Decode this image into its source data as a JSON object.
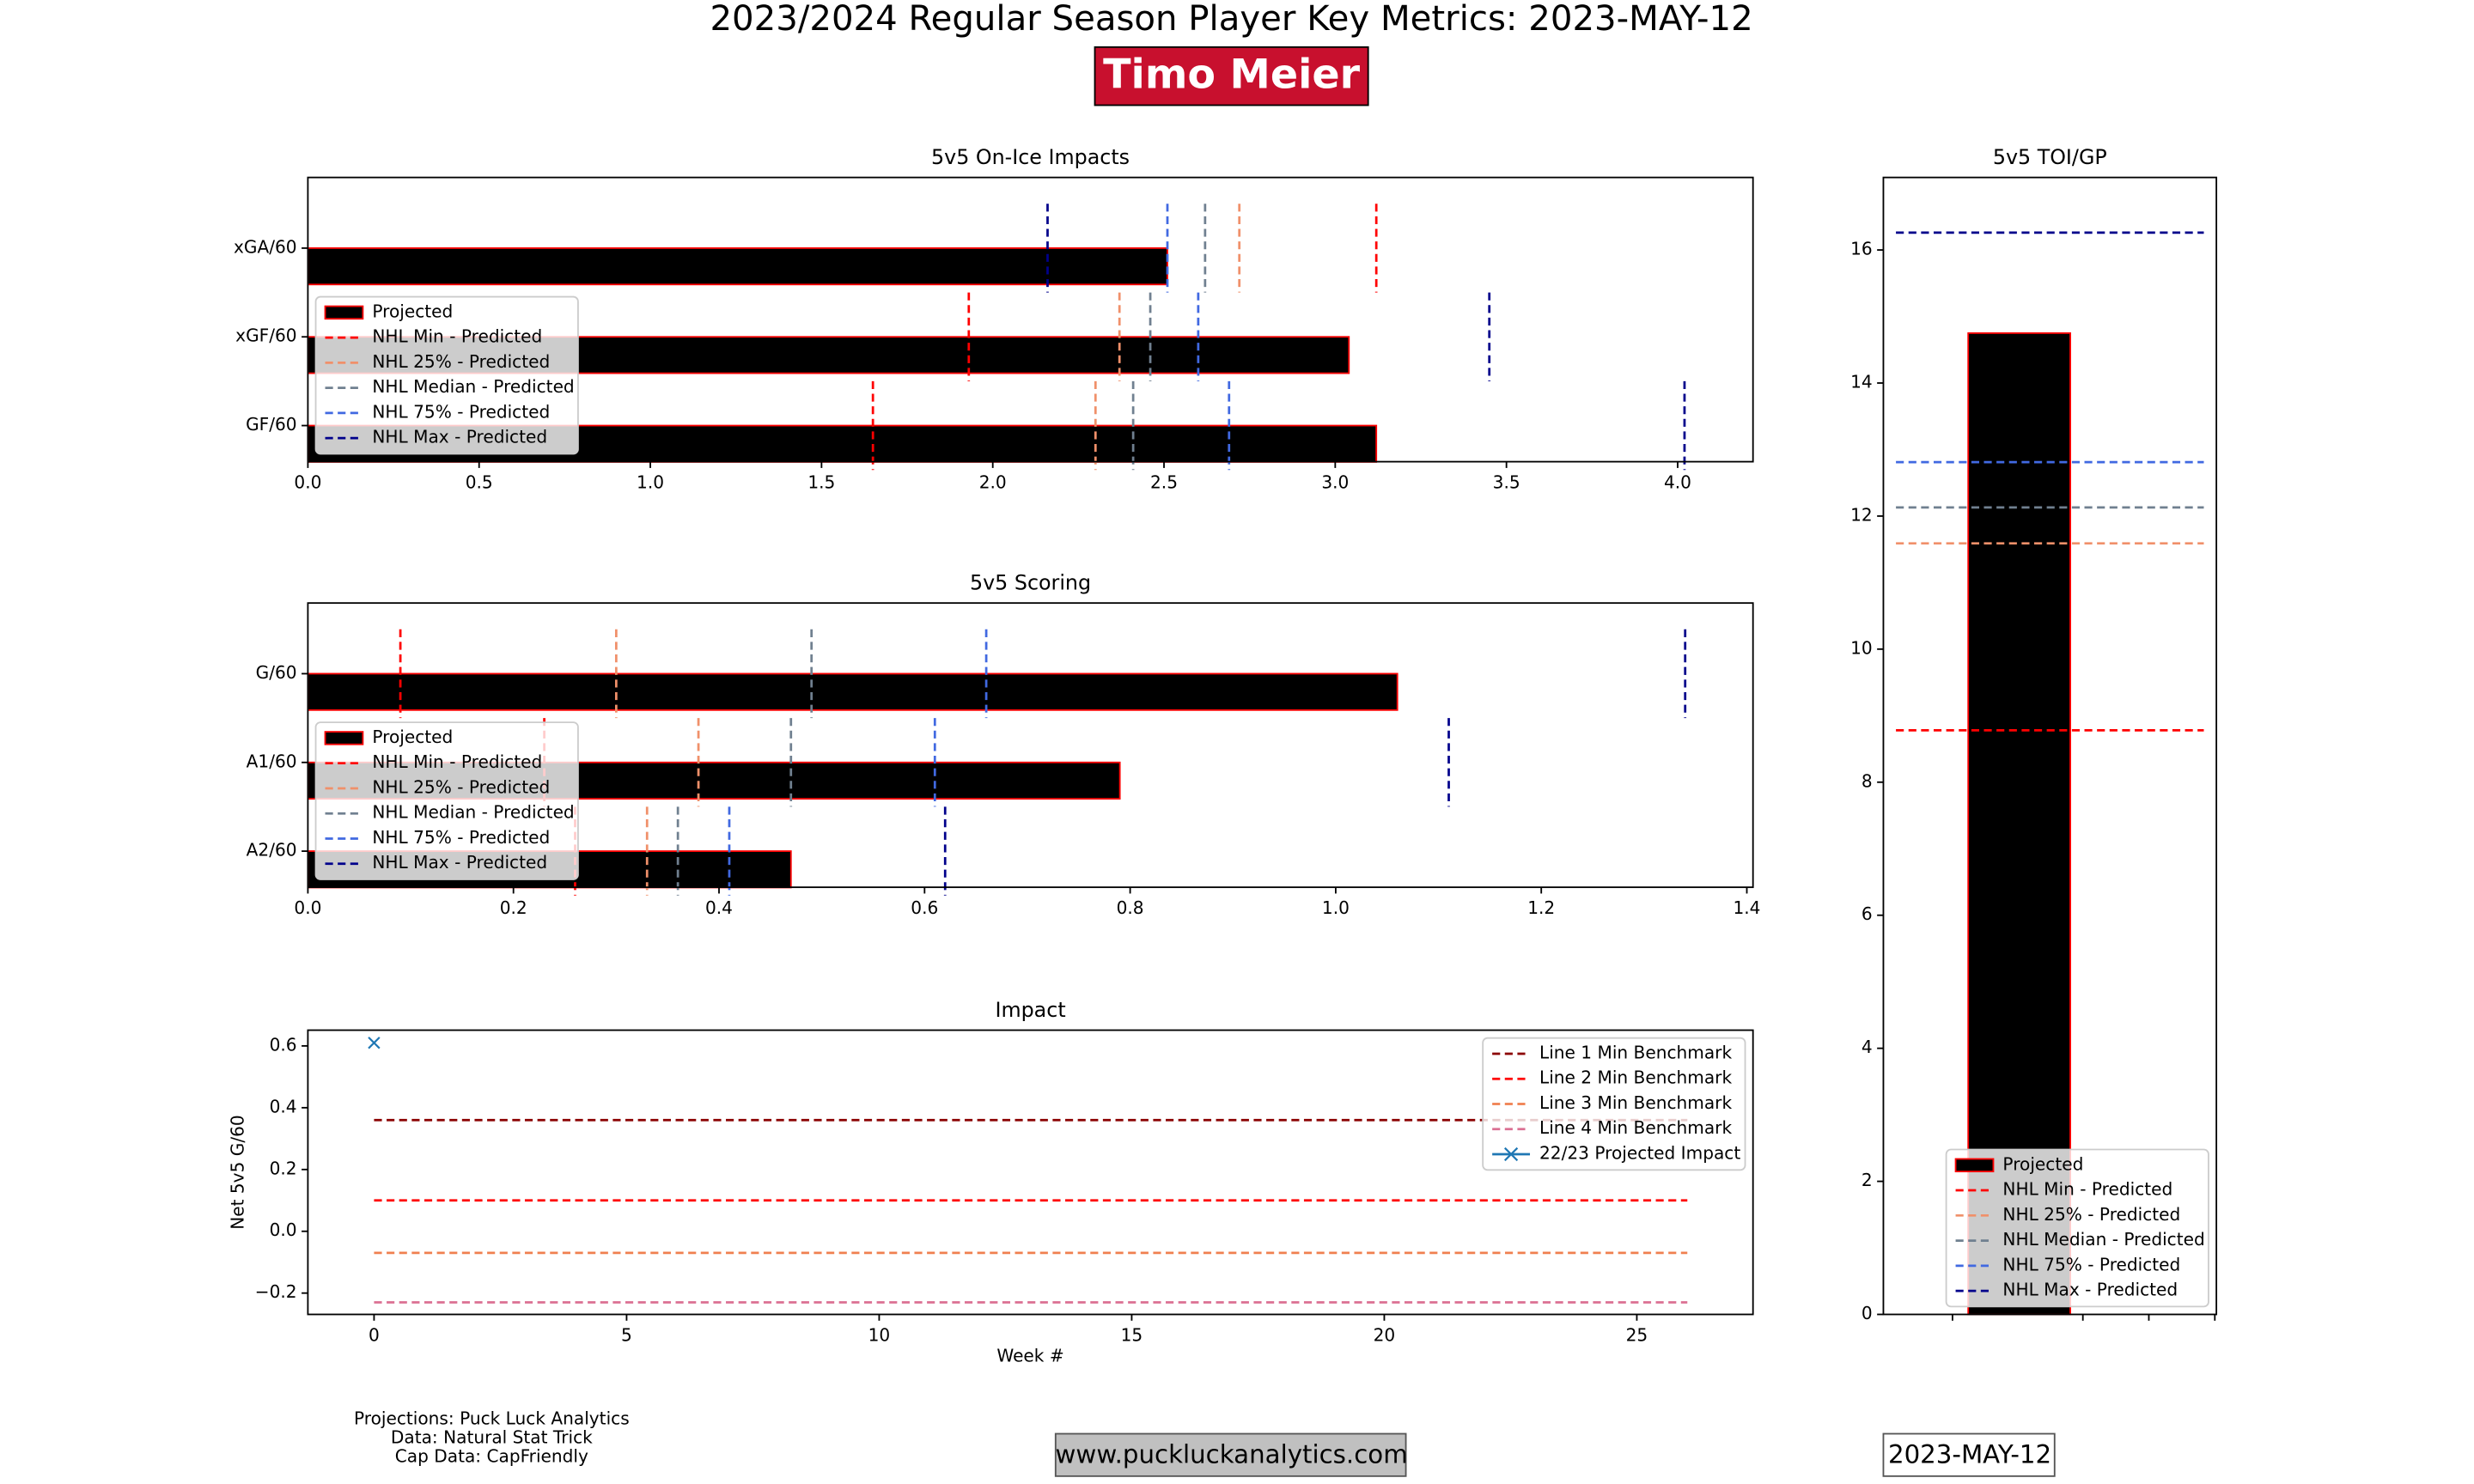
{
  "header": {
    "title": "2023/2024 Regular Season Player Key Metrics: 2023-MAY-12",
    "player": "Timo Meier"
  },
  "chart_data": [
    {
      "type": "hbar",
      "title": "5v5 On-Ice Impacts",
      "categories": [
        "xGA/60",
        "xGF/60",
        "GF/60"
      ],
      "xlim": [
        0,
        4.22
      ],
      "xticks": [
        {
          "value": 0,
          "label": "0.0"
        },
        0.5,
        {
          "value": 1,
          "label": "1.0"
        },
        1.5,
        {
          "value": 2,
          "label": "2.0"
        },
        2.5,
        {
          "value": 3,
          "label": "3.0"
        },
        3.5,
        {
          "value": 4,
          "label": "4.0"
        }
      ],
      "legend": "lower left",
      "series": [
        {
          "name": "Projected",
          "color": "#000000",
          "edgecolor": "#ff0000",
          "values": [
            2.51,
            3.04,
            3.12
          ]
        },
        {
          "name": "NHL Min - Predicted",
          "color": "#ff0000",
          "linestyle": "dashed",
          "values": [
            3.12,
            1.93,
            1.65
          ]
        },
        {
          "name": "NHL 25% - Predicted",
          "color": "#f0906a",
          "linestyle": "dashed",
          "values": [
            2.72,
            2.37,
            2.3
          ]
        },
        {
          "name": "NHL Median - Predicted",
          "color": "#708090",
          "linestyle": "dashed",
          "values": [
            2.62,
            2.46,
            2.41
          ]
        },
        {
          "name": "NHL 75% - Predicted",
          "color": "#4169e1",
          "linestyle": "dashed",
          "values": [
            2.51,
            2.6,
            2.69
          ]
        },
        {
          "name": "NHL Max - Predicted",
          "color": "#00008b",
          "linestyle": "dashed",
          "values": [
            2.16,
            3.45,
            4.02
          ]
        }
      ]
    },
    {
      "type": "hbar",
      "title": "5v5 Scoring",
      "categories": [
        "G/60",
        "A1/60",
        "A2/60"
      ],
      "xlim": [
        0,
        1.406
      ],
      "xticks": [
        {
          "value": 0,
          "label": "0.0"
        },
        0.2,
        0.4,
        0.6,
        0.8,
        {
          "value": 1,
          "label": "1.0"
        },
        1.2,
        1.4
      ],
      "legend": "lower left",
      "series": [
        {
          "name": "Projected",
          "color": "#000000",
          "edgecolor": "#ff0000",
          "values": [
            1.06,
            0.79,
            0.47
          ]
        },
        {
          "name": "NHL Min - Predicted",
          "color": "#ff0000",
          "linestyle": "dashed",
          "values": [
            0.09,
            0.23,
            0.26
          ]
        },
        {
          "name": "NHL 25% - Predicted",
          "color": "#f0906a",
          "linestyle": "dashed",
          "values": [
            0.3,
            0.38,
            0.33
          ]
        },
        {
          "name": "NHL Median - Predicted",
          "color": "#708090",
          "linestyle": "dashed",
          "values": [
            0.49,
            0.47,
            0.36
          ]
        },
        {
          "name": "NHL 75% - Predicted",
          "color": "#4169e1",
          "linestyle": "dashed",
          "values": [
            0.66,
            0.61,
            0.41
          ]
        },
        {
          "name": "NHL Max - Predicted",
          "color": "#00008b",
          "linestyle": "dashed",
          "values": [
            1.34,
            1.11,
            0.62
          ]
        }
      ]
    },
    {
      "type": "line",
      "title": "Impact",
      "xlabel": "Week #",
      "ylabel": "Net 5v5 G/60",
      "xlim": [
        -1.31,
        27.3
      ],
      "xticks": [
        0,
        5,
        10,
        15,
        20,
        25
      ],
      "ylim": [
        -0.269,
        0.651
      ],
      "yticks": [
        {
          "value": -0.2,
          "label": "−0.2"
        },
        {
          "value": 0,
          "label": "0.0"
        },
        0.2,
        0.4,
        0.6
      ],
      "legend": "upper right",
      "series": [
        {
          "name": "Line 1 Min Benchmark",
          "color": "#8b0000",
          "linestyle": "dashed",
          "x": [
            0,
            26
          ],
          "values": [
            0.36,
            0.36
          ]
        },
        {
          "name": "Line 2 Min Benchmark",
          "color": "#ff0000",
          "linestyle": "dashed",
          "x": [
            0,
            26
          ],
          "values": [
            0.1,
            0.1
          ]
        },
        {
          "name": "Line 3 Min Benchmark",
          "color": "#f08050",
          "linestyle": "dashed",
          "x": [
            0,
            26
          ],
          "values": [
            -0.07,
            -0.07
          ]
        },
        {
          "name": "Line 4 Min Benchmark",
          "color": "#db7093",
          "linestyle": "dashed",
          "x": [
            0,
            26
          ],
          "values": [
            -0.23,
            -0.23
          ]
        },
        {
          "name": "22/23 Projected Impact",
          "color": "#1f77b4",
          "linestyle": "solid",
          "marker": "x",
          "x": [
            0
          ],
          "values": [
            0.61
          ]
        }
      ]
    },
    {
      "type": "vbar",
      "title": "5v5 TOI/GP",
      "ylim": [
        0,
        17.09
      ],
      "yticks": [
        0,
        2,
        4,
        6,
        8,
        10,
        12,
        14,
        16
      ],
      "legend": "lower right",
      "series": [
        {
          "name": "Projected",
          "color": "#000000",
          "edgecolor": "#ff0000",
          "values": [
            14.75
          ]
        },
        {
          "name": "NHL Min - Predicted",
          "color": "#ff0000",
          "linestyle": "dashed",
          "values": [
            8.78
          ]
        },
        {
          "name": "NHL 25% - Predicted",
          "color": "#f0906a",
          "linestyle": "dashed",
          "values": [
            11.59
          ]
        },
        {
          "name": "NHL Median - Predicted",
          "color": "#708090",
          "linestyle": "dashed",
          "values": [
            12.13
          ]
        },
        {
          "name": "NHL 75% - Predicted",
          "color": "#4169e1",
          "linestyle": "dashed",
          "values": [
            12.81
          ]
        },
        {
          "name": "NHL Max - Predicted",
          "color": "#00008b",
          "linestyle": "dashed",
          "values": [
            16.26
          ]
        }
      ]
    }
  ],
  "footer": {
    "credits": [
      "Projections: Puck Luck Analytics",
      "Data: Natural Stat Trick",
      "Cap Data: CapFriendly"
    ],
    "website": "www.puckluckanalytics.com",
    "date": "2023-MAY-12"
  }
}
